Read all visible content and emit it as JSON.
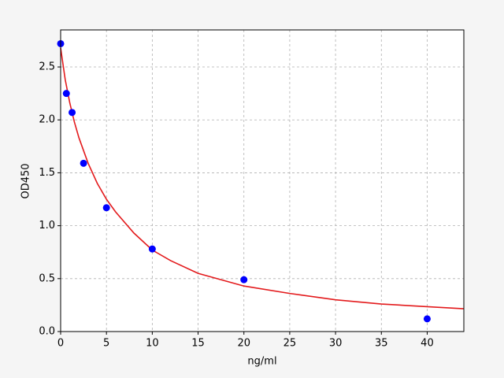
{
  "chart_data": {
    "type": "scatter",
    "xlabel": "ng/ml",
    "ylabel": "OD450",
    "points": {
      "color": "#0000ff",
      "x": [
        0,
        0.625,
        1.25,
        2.5,
        5,
        10,
        20,
        40
      ],
      "values": [
        2.72,
        2.25,
        2.07,
        1.59,
        1.17,
        0.78,
        0.49,
        0.12
      ]
    },
    "curve": {
      "color": "#e31a1c",
      "x": [
        0,
        0.5,
        1,
        1.5,
        2,
        3,
        4,
        5,
        6,
        8,
        10,
        12,
        15,
        20,
        25,
        30,
        35,
        40,
        44
      ],
      "values": [
        2.68,
        2.38,
        2.16,
        1.98,
        1.83,
        1.59,
        1.4,
        1.25,
        1.13,
        0.93,
        0.77,
        0.67,
        0.55,
        0.43,
        0.36,
        0.3,
        0.26,
        0.235,
        0.215
      ]
    },
    "xlim": [
      0,
      44
    ],
    "ylim": [
      0,
      2.85
    ],
    "xticks": [
      0,
      5,
      10,
      15,
      20,
      25,
      30,
      35,
      40
    ],
    "yticks": [
      {
        "value": 0,
        "label": "0.0"
      },
      0.5,
      {
        "value": 1,
        "label": "1.0"
      },
      1.5,
      {
        "value": 2,
        "label": "2.0"
      },
      2.5
    ],
    "grid": true
  }
}
